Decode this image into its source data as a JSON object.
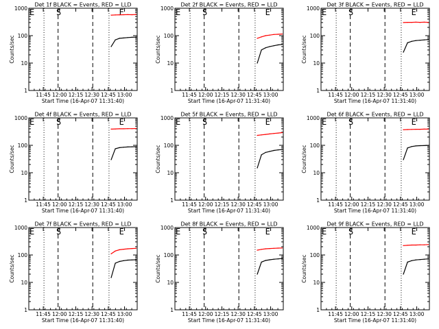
{
  "chart_data": {
    "type": "line",
    "grid_layout": "3x3",
    "common": {
      "xlabel": "Start Time (16-Apr-07 11:31:40)",
      "ylabel": "Counts/sec",
      "x_tick_labels": [
        "11:45",
        "12:00",
        "12:15",
        "12:30",
        "12:45",
        "13:00"
      ],
      "x_ticks_min": [
        13.33,
        28.33,
        43.33,
        58.33,
        73.33,
        88.33
      ],
      "xlim": [
        0,
        100
      ],
      "y_scale": "log",
      "ylim": [
        1,
        1000
      ],
      "y_tick_labels": [
        "1",
        "10",
        "100",
        "1000"
      ],
      "y_ticks": [
        1,
        10,
        100,
        1000
      ],
      "markers": [
        {
          "label": "E",
          "x": 0,
          "style": "none"
        },
        {
          "label": "",
          "x": 14,
          "style": "dotted"
        },
        {
          "label": "S",
          "x": 27,
          "style": "dashed"
        },
        {
          "label": "",
          "x": 59,
          "style": "dashed"
        },
        {
          "label": "",
          "x": 74,
          "style": "dotted"
        },
        {
          "label": "E",
          "x": 85,
          "style": "none"
        }
      ],
      "series_colors": {
        "events": "#000000",
        "lld": "#ff0000"
      },
      "series_start_x": 76,
      "series_end_x": 99
    },
    "panels": [
      {
        "title": "Det 1f BLACK = Events, RED = LLD",
        "events": [
          40,
          70,
          80,
          82,
          85,
          87,
          88
        ],
        "lld": [
          560,
          570,
          575,
          580,
          585,
          580,
          590
        ]
      },
      {
        "title": "Det 2f BLACK = Events, RED = LLD",
        "events": [
          10,
          30,
          36,
          40,
          43,
          46,
          48
        ],
        "lld": [
          80,
          90,
          100,
          105,
          110,
          112,
          115
        ]
      },
      {
        "title": "Det 3f BLACK = Events, RED = LLD",
        "events": [
          25,
          55,
          62,
          66,
          68,
          70,
          72
        ],
        "lld": [
          300,
          305,
          305,
          310,
          305,
          310,
          305
        ]
      },
      {
        "title": "Det 4f BLACK = Events, RED = LLD",
        "events": [
          30,
          75,
          82,
          85,
          87,
          88,
          89
        ],
        "lld": [
          390,
          395,
          400,
          400,
          405,
          405,
          410
        ]
      },
      {
        "title": "Det 5f BLACK = Events, RED = LLD",
        "events": [
          15,
          45,
          55,
          60,
          65,
          68,
          70
        ],
        "lld": [
          230,
          240,
          250,
          260,
          270,
          280,
          290
        ]
      },
      {
        "title": "Det 6f BLACK = Events, RED = LLD",
        "events": [
          30,
          80,
          90,
          95,
          97,
          98,
          99
        ],
        "lld": [
          370,
          375,
          380,
          385,
          385,
          390,
          390
        ]
      },
      {
        "title": "Det 7f BLACK = Events, RED = LLD",
        "events": [
          15,
          50,
          58,
          62,
          65,
          66,
          67
        ],
        "lld": [
          110,
          140,
          155,
          162,
          168,
          172,
          175
        ]
      },
      {
        "title": "Det 8f BLACK = Events, RED = LLD",
        "events": [
          20,
          55,
          63,
          67,
          70,
          72,
          74
        ],
        "lld": [
          150,
          160,
          168,
          172,
          175,
          178,
          180
        ]
      },
      {
        "title": "Det 9f BLACK = Events, RED = LLD",
        "events": [
          20,
          55,
          62,
          66,
          68,
          70,
          72
        ],
        "lld": [
          220,
          225,
          230,
          230,
          235,
          235,
          240
        ]
      }
    ]
  }
}
